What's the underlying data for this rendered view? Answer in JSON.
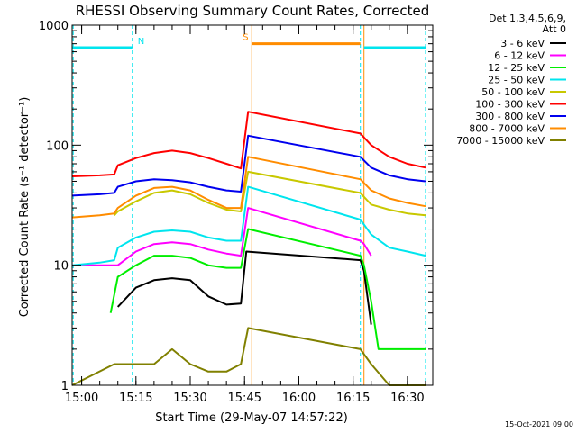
{
  "chart_data": {
    "type": "line",
    "title": "RHESSI Observing Summary Count Rates, Corrected",
    "xlabel": "Start Time (29-May-07 14:57:22)",
    "ylabel": "Corrected Count Rate (s⁻¹ detector⁻¹)",
    "xlim": [
      "14:57:22",
      "16:37:00"
    ],
    "ylim": [
      1,
      1000
    ],
    "y_scale": "log",
    "x_ticks": [
      "15:00",
      "15:15",
      "15:30",
      "15:45",
      "16:00",
      "16:15",
      "16:30"
    ],
    "y_ticks": [
      "1",
      "10",
      "100",
      "1000"
    ],
    "legend_header": [
      "Det 1,3,4,5,6,9,",
      "Att 0"
    ],
    "legend_position": "right",
    "footer_date": "15-Oct-2021 09:00",
    "flags": [
      {
        "label": "N",
        "color": "#00e5ee",
        "segments": [
          [
            "14:57:22",
            "15:14:00"
          ],
          [
            "16:18:00",
            "16:35:00"
          ]
        ],
        "level": 650
      },
      {
        "label": "S",
        "color": "#ff8c00",
        "segments": [
          [
            "15:47:00",
            "16:17:00"
          ]
        ],
        "level": 700
      }
    ],
    "boundaries": [
      {
        "time": "14:57:40",
        "color": "#00e5ee"
      },
      {
        "time": "15:14:00",
        "color": "#00e5ee"
      },
      {
        "time": "16:17:00",
        "color": "#00e5ee"
      },
      {
        "time": "16:35:00",
        "color": "#00e5ee"
      },
      {
        "time": "15:47:00",
        "color": "#ff8c00"
      },
      {
        "time": "16:18:00",
        "color": "#ff8c00"
      }
    ],
    "series": [
      {
        "name": "3 - 6 keV",
        "color": "#000000",
        "x": [
          "15:10",
          "15:15",
          "15:20",
          "15:25",
          "15:30",
          "15:35",
          "15:40",
          "15:44",
          "15:45:30",
          "16:17:00",
          "16:18:00",
          "16:20:00"
        ],
        "values": [
          4.5,
          6.5,
          7.5,
          7.8,
          7.5,
          5.5,
          4.7,
          4.8,
          13,
          11,
          9,
          3.2
        ]
      },
      {
        "name": "6 - 12 keV",
        "color": "#ff00ff",
        "x": [
          "14:57:22",
          "15:10",
          "15:15",
          "15:20",
          "15:25",
          "15:30",
          "15:35",
          "15:40",
          "15:44",
          "15:46",
          "16:17:00",
          "16:18:00",
          "16:20:00"
        ],
        "values": [
          10,
          10,
          13,
          15,
          15.5,
          15,
          13.5,
          12.5,
          12,
          30,
          16,
          15,
          12
        ]
      },
      {
        "name": "12 - 25 keV",
        "color": "#00ee00",
        "x": [
          "15:08",
          "15:10",
          "15:15",
          "15:20",
          "15:25",
          "15:30",
          "15:35",
          "15:40",
          "15:44",
          "15:46",
          "16:17:00",
          "16:18:00",
          "16:20:00",
          "16:22",
          "16:35"
        ],
        "values": [
          4,
          8,
          10,
          12,
          12,
          11.5,
          10,
          9.5,
          9.5,
          20,
          12,
          10,
          5,
          2,
          2
        ]
      },
      {
        "name": "25 - 50 keV",
        "color": "#00e5ee",
        "x": [
          "14:57:22",
          "15:05",
          "15:09",
          "15:10",
          "15:15",
          "15:20",
          "15:25",
          "15:30",
          "15:35",
          "15:40",
          "15:44",
          "15:46",
          "16:17:00",
          "16:20:00",
          "16:25",
          "16:30",
          "16:35"
        ],
        "values": [
          10,
          10.5,
          11,
          14,
          17,
          19,
          19.5,
          19,
          17,
          16,
          16,
          45,
          24,
          18,
          14,
          13,
          12
        ]
      },
      {
        "name": "50 - 100 keV",
        "color": "#c8c800",
        "x": [
          "15:09",
          "15:10",
          "15:15",
          "15:20",
          "15:25",
          "15:30",
          "15:35",
          "15:40",
          "15:44",
          "15:46",
          "16:17:00",
          "16:20:00",
          "16:25",
          "16:30",
          "16:35"
        ],
        "values": [
          26,
          28,
          34,
          40,
          42,
          39,
          33,
          29,
          28,
          60,
          40,
          32,
          29,
          27,
          26
        ]
      },
      {
        "name": "100 - 300 keV",
        "color": "#ff0000",
        "x": [
          "14:57:22",
          "15:05",
          "15:09",
          "15:10",
          "15:15",
          "15:20",
          "15:25",
          "15:30",
          "15:35",
          "15:40",
          "15:44",
          "15:46",
          "16:17:00",
          "16:20:00",
          "16:25",
          "16:30",
          "16:35"
        ],
        "values": [
          55,
          56,
          57,
          68,
          78,
          86,
          90,
          86,
          78,
          70,
          64,
          190,
          125,
          100,
          80,
          70,
          65
        ]
      },
      {
        "name": "300 - 800 keV",
        "color": "#0000ee",
        "x": [
          "14:57:22",
          "15:05",
          "15:09",
          "15:10",
          "15:15",
          "15:20",
          "15:25",
          "15:30",
          "15:35",
          "15:40",
          "15:44",
          "15:46",
          "16:17:00",
          "16:20:00",
          "16:25",
          "16:30",
          "16:35"
        ],
        "values": [
          38,
          39,
          40,
          45,
          50,
          52,
          51,
          49,
          45,
          42,
          41,
          120,
          80,
          65,
          56,
          52,
          50
        ]
      },
      {
        "name": "800 - 7000 keV",
        "color": "#ff8c00",
        "x": [
          "14:57:22",
          "15:05",
          "15:09",
          "15:10",
          "15:15",
          "15:20",
          "15:25",
          "15:30",
          "15:35",
          "15:40",
          "15:44",
          "15:46",
          "16:17:00",
          "16:20:00",
          "16:25",
          "16:30",
          "16:35"
        ],
        "values": [
          25,
          26,
          27,
          30,
          38,
          44,
          45,
          42,
          35,
          30,
          30,
          80,
          52,
          42,
          36,
          33,
          31
        ]
      },
      {
        "name": "7000 - 15000 keV",
        "color": "#808000",
        "x": [
          "14:57:22",
          "15:09",
          "15:20",
          "15:25",
          "15:30",
          "15:35",
          "15:40",
          "15:44",
          "15:46",
          "16:17:00",
          "16:20:00",
          "16:25",
          "16:30",
          "16:35"
        ],
        "values": [
          1,
          1.5,
          1.5,
          2,
          1.5,
          1.3,
          1.3,
          1.5,
          3,
          2,
          1.5,
          1,
          1,
          1
        ]
      }
    ]
  }
}
